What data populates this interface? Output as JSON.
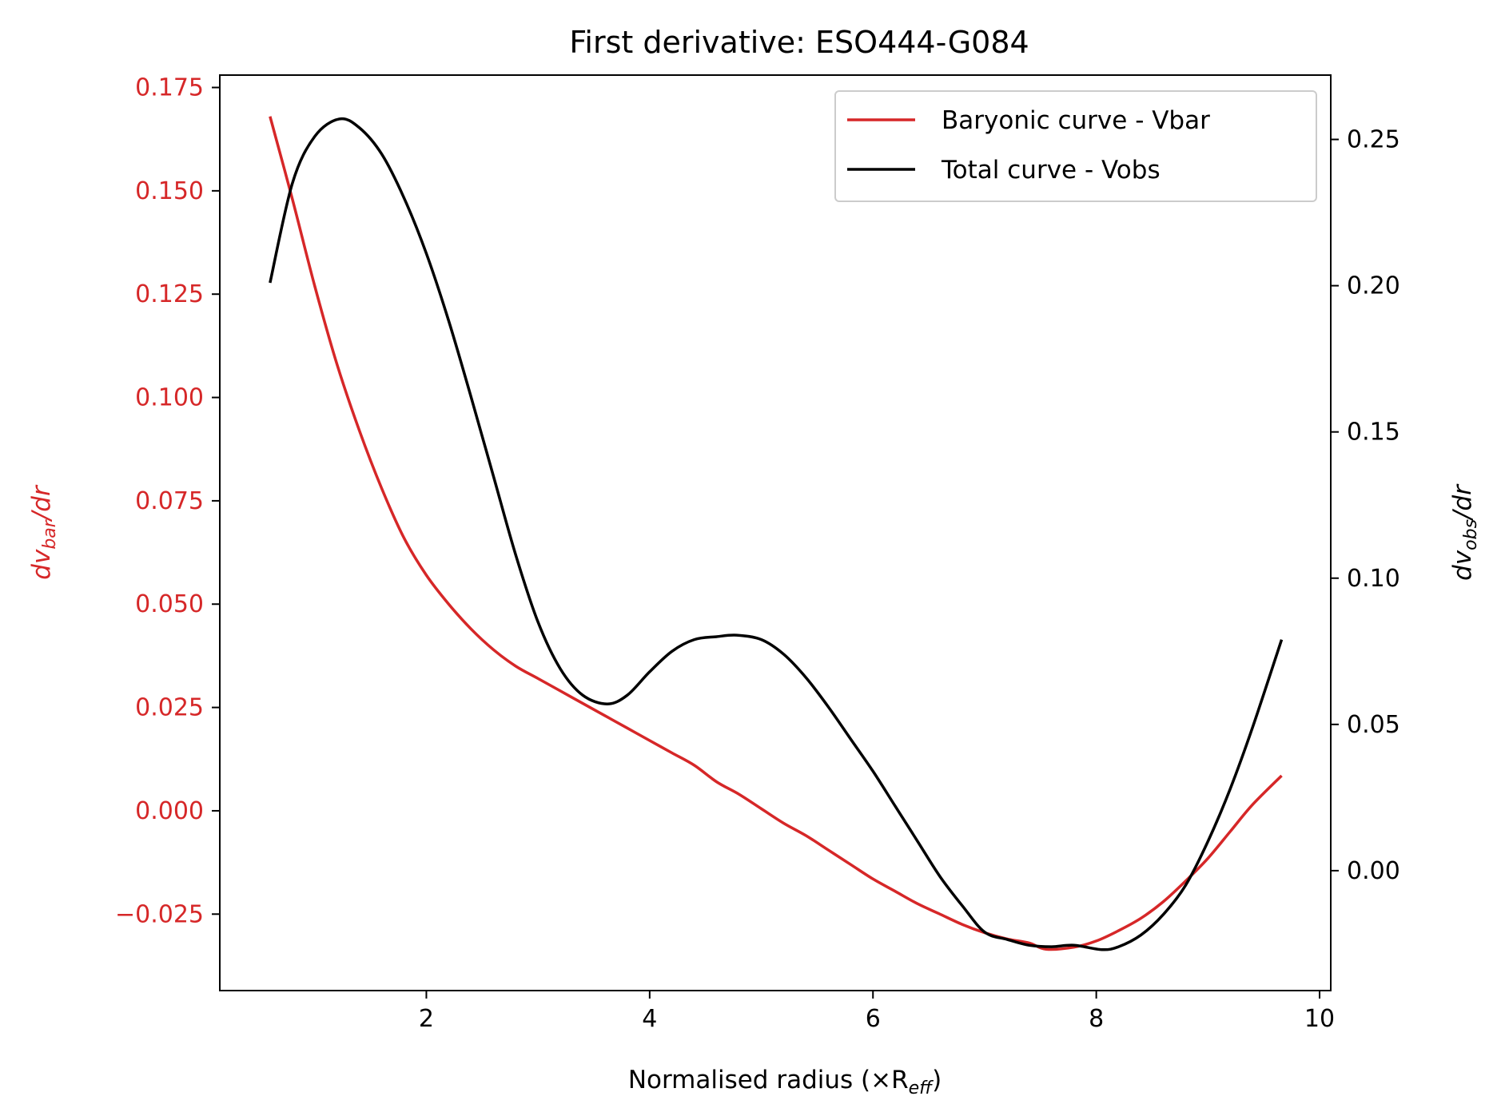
{
  "chart_data": {
    "type": "line",
    "title": "First derivative: ESO444-G084",
    "xlabel": "Normalised radius (×R",
    "xlabel_sub": "eff",
    "xlabel_end": ")",
    "ylabel_left": {
      "d": "dv",
      "sub": "bar",
      "end": "/dr"
    },
    "ylabel_right": {
      "d": "dv",
      "sub": "obs",
      "end": "/dr"
    },
    "xlim": [
      0.15,
      10.1
    ],
    "ylim_left": [
      -0.0435,
      0.178
    ],
    "ylim_right": [
      -0.041,
      0.272
    ],
    "x_ticks": [
      "2",
      "4",
      "6",
      "8",
      "10"
    ],
    "y_left_ticks": [
      "−0.025",
      "0.000",
      "0.025",
      "0.050",
      "0.075",
      "0.100",
      "0.125",
      "0.150",
      "0.175"
    ],
    "y_right_ticks": [
      "0.00",
      "0.05",
      "0.10",
      "0.15",
      "0.20",
      "0.25"
    ],
    "grid": false,
    "legend_position": "top-right",
    "colors": {
      "bar": "#d62728",
      "obs": "#000000",
      "left_axis": "#d62728",
      "right_axis": "#000000"
    },
    "series": [
      {
        "name": "Baryonic curve - Vbar",
        "axis": "left",
        "color": "#d62728",
        "x": [
          0.6,
          0.8,
          1.0,
          1.2,
          1.4,
          1.6,
          1.8,
          2.0,
          2.2,
          2.4,
          2.6,
          2.8,
          3.0,
          3.2,
          3.4,
          3.6,
          3.8,
          4.0,
          4.2,
          4.4,
          4.6,
          4.8,
          5.0,
          5.2,
          5.4,
          5.6,
          5.8,
          6.0,
          6.2,
          6.4,
          6.6,
          6.8,
          7.0,
          7.2,
          7.4,
          7.55,
          7.8,
          8.0,
          8.2,
          8.4,
          8.6,
          8.8,
          9.0,
          9.2,
          9.4,
          9.66
        ],
        "y": [
          0.168,
          0.148,
          0.127,
          0.108,
          0.092,
          0.078,
          0.066,
          0.057,
          0.05,
          0.044,
          0.039,
          0.035,
          0.032,
          0.029,
          0.026,
          0.023,
          0.02,
          0.017,
          0.014,
          0.011,
          0.007,
          0.004,
          0.0005,
          -0.003,
          -0.006,
          -0.0095,
          -0.013,
          -0.0165,
          -0.0195,
          -0.0225,
          -0.025,
          -0.0275,
          -0.0295,
          -0.031,
          -0.032,
          -0.0335,
          -0.033,
          -0.0315,
          -0.029,
          -0.026,
          -0.022,
          -0.017,
          -0.0115,
          -0.005,
          0.0015,
          0.0085
        ]
      },
      {
        "name": "Total curve - Vobs",
        "axis": "right",
        "color": "#000000",
        "x": [
          0.6,
          0.8,
          1.0,
          1.22,
          1.4,
          1.6,
          1.8,
          2.0,
          2.2,
          2.4,
          2.6,
          2.8,
          3.0,
          3.2,
          3.4,
          3.62,
          3.8,
          4.0,
          4.2,
          4.4,
          4.6,
          4.78,
          5.0,
          5.2,
          5.4,
          5.6,
          5.8,
          6.0,
          6.2,
          6.4,
          6.6,
          6.8,
          7.0,
          7.2,
          7.4,
          7.6,
          7.8,
          8.05,
          8.2,
          8.4,
          8.6,
          8.8,
          9.0,
          9.2,
          9.4,
          9.66
        ],
        "y": [
          0.201,
          0.235,
          0.251,
          0.257,
          0.254,
          0.245,
          0.23,
          0.211,
          0.188,
          0.162,
          0.135,
          0.108,
          0.085,
          0.069,
          0.06,
          0.057,
          0.06,
          0.068,
          0.075,
          0.079,
          0.08,
          0.0805,
          0.079,
          0.074,
          0.066,
          0.056,
          0.045,
          0.034,
          0.022,
          0.01,
          -0.002,
          -0.012,
          -0.021,
          -0.0235,
          -0.0255,
          -0.026,
          -0.0255,
          -0.027,
          -0.026,
          -0.022,
          -0.015,
          -0.005,
          0.01,
          0.028,
          0.049,
          0.079
        ]
      }
    ]
  }
}
